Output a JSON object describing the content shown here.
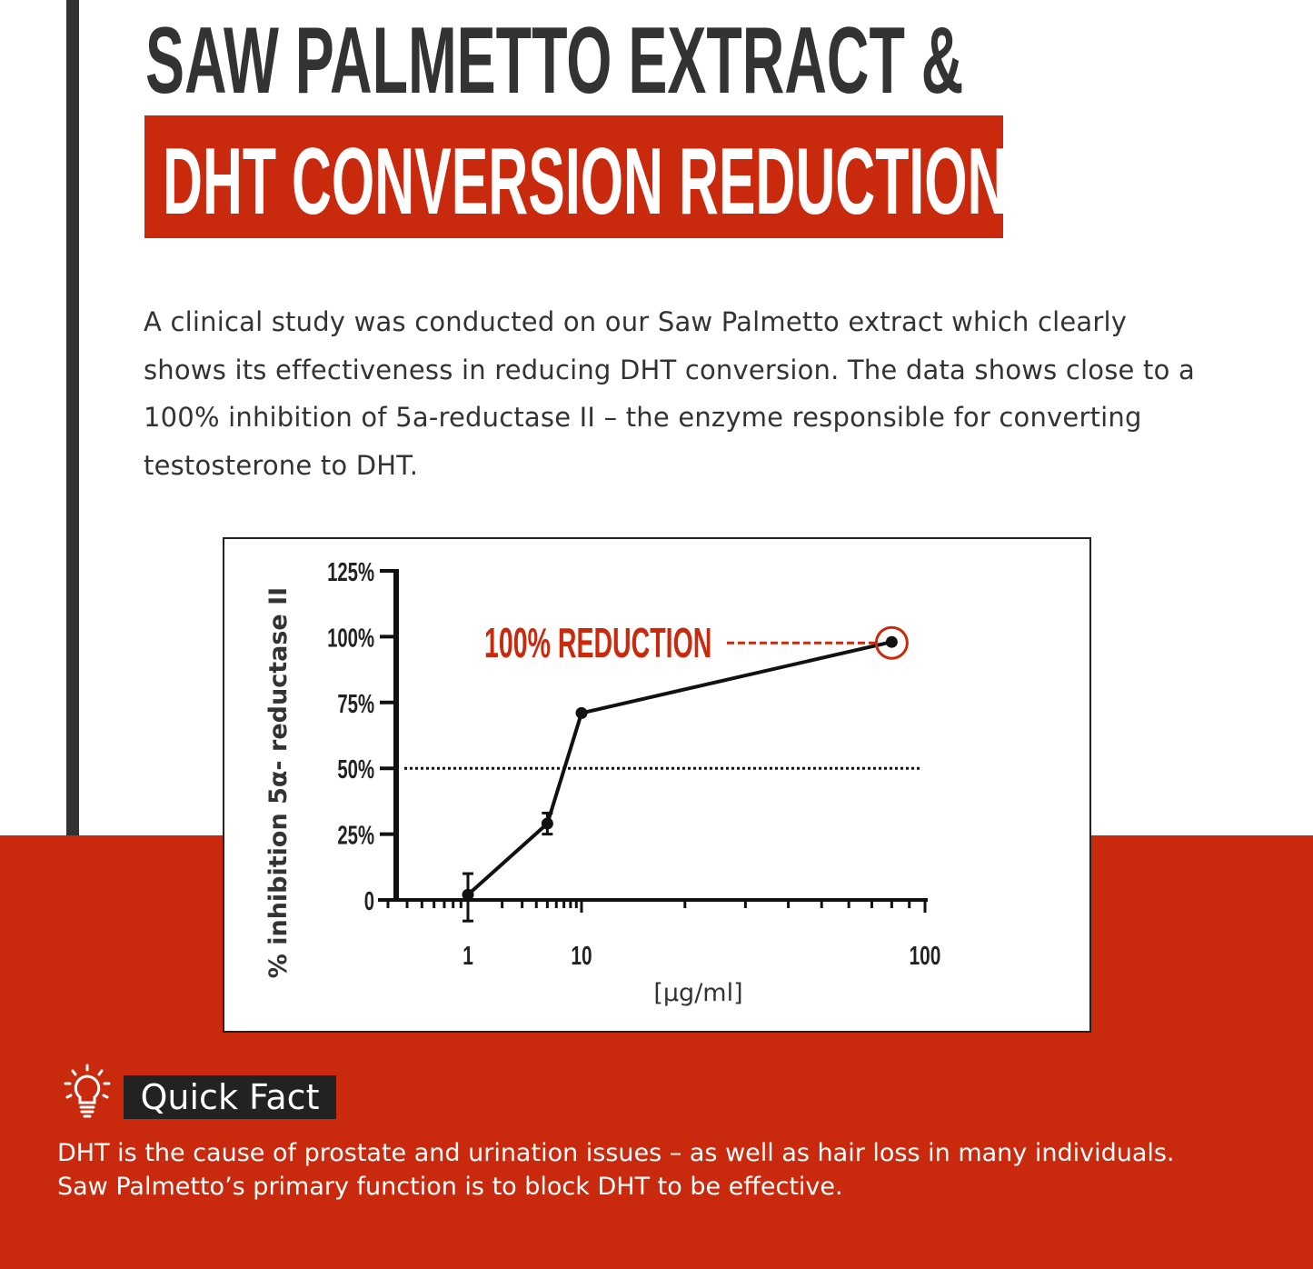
{
  "header": {
    "title_line1": "SAW PALMETTO EXTRACT &",
    "title_line2": "DHT CONVERSION REDUCTION"
  },
  "intro": "A clinical study was conducted on our Saw Palmetto extract which clearly shows its effectiveness in reducing DHT conversion. The data shows close to a 100% inhibition of 5a-reductase II – the enzyme responsible for converting testosterone to DHT.",
  "colors": {
    "accent": "#c9290d",
    "dark": "#333333",
    "line": "#111111"
  },
  "chart_data": {
    "type": "line",
    "xlabel": "[µg/ml]",
    "ylabel": "% inhibition 5α- reductase II",
    "x_scale": "log",
    "x_ticks": [
      "1",
      "10",
      "100"
    ],
    "y_ticks": [
      "0",
      "25%",
      "50%",
      "75%",
      "100%",
      "125%"
    ],
    "ylim": [
      0,
      125
    ],
    "reference_line": {
      "y": 50,
      "style": "dotted"
    },
    "annotation": {
      "text": "100% REDUCTION",
      "target_x": 80,
      "target_y": 98
    },
    "series": [
      {
        "x": [
          1,
          5,
          10,
          80
        ],
        "y": [
          2,
          29,
          71,
          98
        ],
        "error": [
          [
            -8,
            10
          ],
          [
            25,
            33
          ],
          null,
          null
        ]
      }
    ]
  },
  "quick_fact": {
    "icon": "lightbulb-icon",
    "label": "Quick Fact",
    "line1": "DHT is the cause of prostate and urination issues – as well as hair loss in many individuals.",
    "line2": "Saw Palmetto’s primary function is to block DHT to be effective."
  }
}
